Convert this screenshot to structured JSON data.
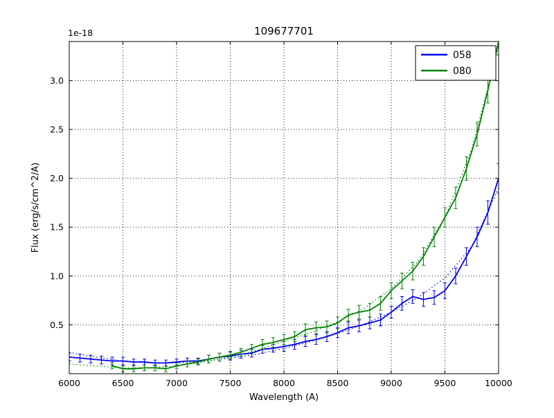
{
  "chart_data": {
    "type": "line",
    "title": "109677701",
    "xlabel": "Wavelength (A)",
    "ylabel": "Flux (erg/s/cm^2/A)",
    "offset_text": "1e-18",
    "xlim": [
      6000,
      10000
    ],
    "ylim": [
      0,
      3.4
    ],
    "xticks": [
      6000,
      6500,
      7000,
      7500,
      8000,
      8500,
      9000,
      9500,
      10000
    ],
    "xtick_labels": [
      "6000",
      "6500",
      "7000",
      "7500",
      "8000",
      "8500",
      "9000",
      "9500",
      "10000"
    ],
    "yticks": [
      0.5,
      1.0,
      1.5,
      2.0,
      2.5,
      3.0
    ],
    "ytick_labels": [
      "0.5",
      "1.0",
      "1.5",
      "2.0",
      "2.5",
      "3.0"
    ],
    "grid": true,
    "grid_style": "dotted",
    "legend": {
      "position": "upper right",
      "entries": [
        {
          "label": "058",
          "color": "#0000ee"
        },
        {
          "label": "080",
          "color": "#008000"
        }
      ]
    },
    "series": [
      {
        "name": "058",
        "color": "#0000ee",
        "x": [
          6000,
          6100,
          6200,
          6300,
          6400,
          6500,
          6600,
          6700,
          6800,
          6900,
          7000,
          7100,
          7200,
          7300,
          7400,
          7500,
          7600,
          7700,
          7800,
          7900,
          8000,
          8100,
          8200,
          8300,
          8400,
          8500,
          8600,
          8700,
          8800,
          8900,
          9000,
          9100,
          9200,
          9300,
          9400,
          9500,
          9600,
          9700,
          9800,
          9900,
          10000
        ],
        "y": [
          0.17,
          0.16,
          0.15,
          0.14,
          0.13,
          0.13,
          0.12,
          0.12,
          0.11,
          0.11,
          0.12,
          0.13,
          0.13,
          0.15,
          0.17,
          0.18,
          0.2,
          0.21,
          0.25,
          0.26,
          0.28,
          0.3,
          0.33,
          0.35,
          0.38,
          0.42,
          0.47,
          0.49,
          0.52,
          0.55,
          0.63,
          0.72,
          0.79,
          0.76,
          0.78,
          0.85,
          1.0,
          1.2,
          1.4,
          1.65,
          2.0
        ],
        "yerr": [
          0.04,
          0.04,
          0.04,
          0.04,
          0.04,
          0.04,
          0.03,
          0.03,
          0.03,
          0.03,
          0.03,
          0.03,
          0.03,
          0.04,
          0.04,
          0.04,
          0.04,
          0.04,
          0.04,
          0.04,
          0.05,
          0.05,
          0.05,
          0.05,
          0.05,
          0.05,
          0.06,
          0.06,
          0.06,
          0.06,
          0.06,
          0.07,
          0.07,
          0.07,
          0.07,
          0.08,
          0.08,
          0.09,
          0.1,
          0.12,
          0.15
        ],
        "model_x": [
          6000,
          6250,
          6500,
          6750,
          7000,
          7250,
          7500,
          7750,
          8000,
          8250,
          8500,
          8750,
          9000,
          9250,
          9500,
          9750,
          10000
        ],
        "model_y": [
          0.22,
          0.17,
          0.13,
          0.11,
          0.11,
          0.13,
          0.16,
          0.2,
          0.26,
          0.33,
          0.41,
          0.51,
          0.63,
          0.78,
          0.98,
          1.3,
          1.9
        ]
      },
      {
        "name": "080",
        "color": "#008000",
        "x": [
          6400,
          6500,
          6600,
          6700,
          6800,
          6900,
          7000,
          7100,
          7200,
          7300,
          7400,
          7500,
          7600,
          7700,
          7800,
          7900,
          8000,
          8100,
          8200,
          8300,
          8400,
          8500,
          8600,
          8700,
          8800,
          8900,
          9000,
          9100,
          9200,
          9300,
          9400,
          9500,
          9600,
          9700,
          9800,
          9900,
          10000
        ],
        "y": [
          0.08,
          0.05,
          0.05,
          0.06,
          0.06,
          0.05,
          0.08,
          0.1,
          0.12,
          0.15,
          0.17,
          0.19,
          0.22,
          0.26,
          0.3,
          0.32,
          0.35,
          0.38,
          0.45,
          0.47,
          0.48,
          0.52,
          0.6,
          0.63,
          0.65,
          0.72,
          0.85,
          0.95,
          1.05,
          1.2,
          1.4,
          1.6,
          1.8,
          2.1,
          2.45,
          2.9,
          3.4
        ],
        "yerr": [
          0.03,
          0.03,
          0.03,
          0.03,
          0.03,
          0.03,
          0.03,
          0.03,
          0.03,
          0.04,
          0.04,
          0.04,
          0.04,
          0.04,
          0.05,
          0.05,
          0.05,
          0.05,
          0.06,
          0.06,
          0.06,
          0.06,
          0.06,
          0.07,
          0.07,
          0.07,
          0.08,
          0.08,
          0.09,
          0.09,
          0.1,
          0.1,
          0.11,
          0.12,
          0.12,
          0.13,
          0.14
        ],
        "model_x": [
          6000,
          6250,
          6500,
          6750,
          7000,
          7250,
          7500,
          7750,
          8000,
          8250,
          8500,
          8750,
          9000,
          9250,
          9500,
          9750,
          10000
        ],
        "model_y": [
          0.1,
          0.08,
          0.06,
          0.06,
          0.08,
          0.12,
          0.17,
          0.24,
          0.33,
          0.42,
          0.53,
          0.67,
          0.87,
          1.15,
          1.6,
          2.3,
          3.35
        ]
      }
    ]
  }
}
